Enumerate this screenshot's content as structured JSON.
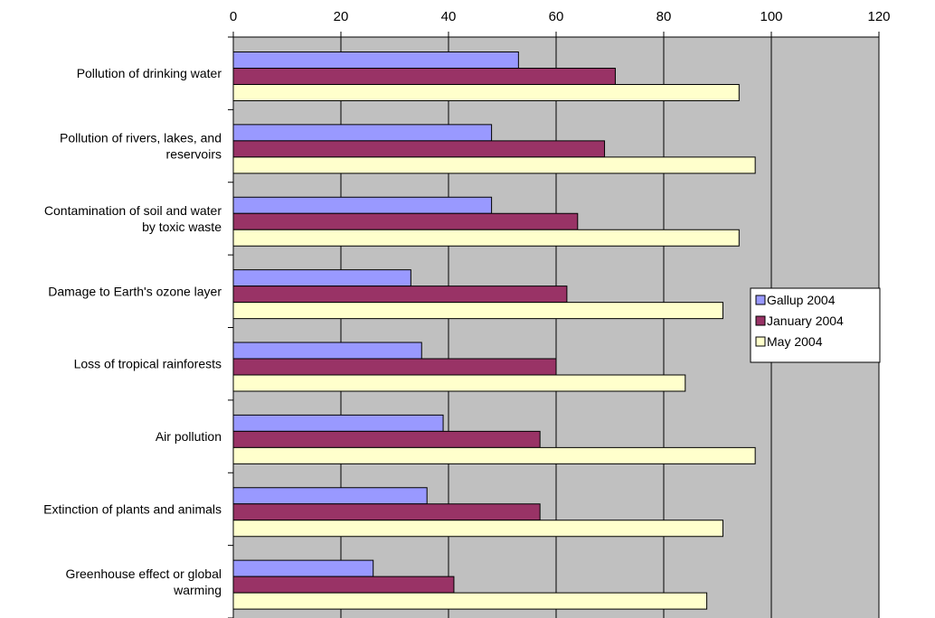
{
  "chart_data": {
    "type": "bar",
    "orientation": "horizontal",
    "categories": [
      "Pollution of drinking water",
      "Pollution of rivers, lakes, and reservoirs",
      "Contamination of soil and water by toxic waste",
      "Damage to Earth's ozone layer",
      "Loss of tropical rainforests",
      "Air pollution",
      "Extinction of plants and animals",
      "Greenhouse effect or global warming"
    ],
    "category_lines": [
      [
        "Pollution of drinking water"
      ],
      [
        "Pollution of rivers, lakes, and",
        "reservoirs"
      ],
      [
        "Contamination of soil and water",
        "by toxic waste"
      ],
      [
        "Damage to Earth's ozone layer"
      ],
      [
        "Loss of tropical rainforests"
      ],
      [
        "Air pollution"
      ],
      [
        "Extinction of plants and animals"
      ],
      [
        "Greenhouse effect or global",
        "warming"
      ]
    ],
    "series": [
      {
        "name": "Gallup 2004",
        "color": "#9999ff",
        "values": [
          53,
          48,
          48,
          33,
          35,
          39,
          36,
          26
        ]
      },
      {
        "name": "January 2004",
        "color": "#993366",
        "values": [
          71,
          69,
          64,
          62,
          60,
          57,
          57,
          41
        ]
      },
      {
        "name": "May 2004",
        "color": "#ffffcc",
        "values": [
          94,
          97,
          94,
          91,
          84,
          97,
          91,
          88
        ]
      }
    ],
    "xlim": [
      0,
      120
    ],
    "xticks": [
      "0",
      "20",
      "40",
      "60",
      "80",
      "100",
      "120"
    ],
    "tick_step": 20,
    "axis_position": "top",
    "plot_background": "#c0c0c0",
    "grid": true,
    "legend_position": "right",
    "title": "",
    "xlabel": "",
    "ylabel": ""
  }
}
